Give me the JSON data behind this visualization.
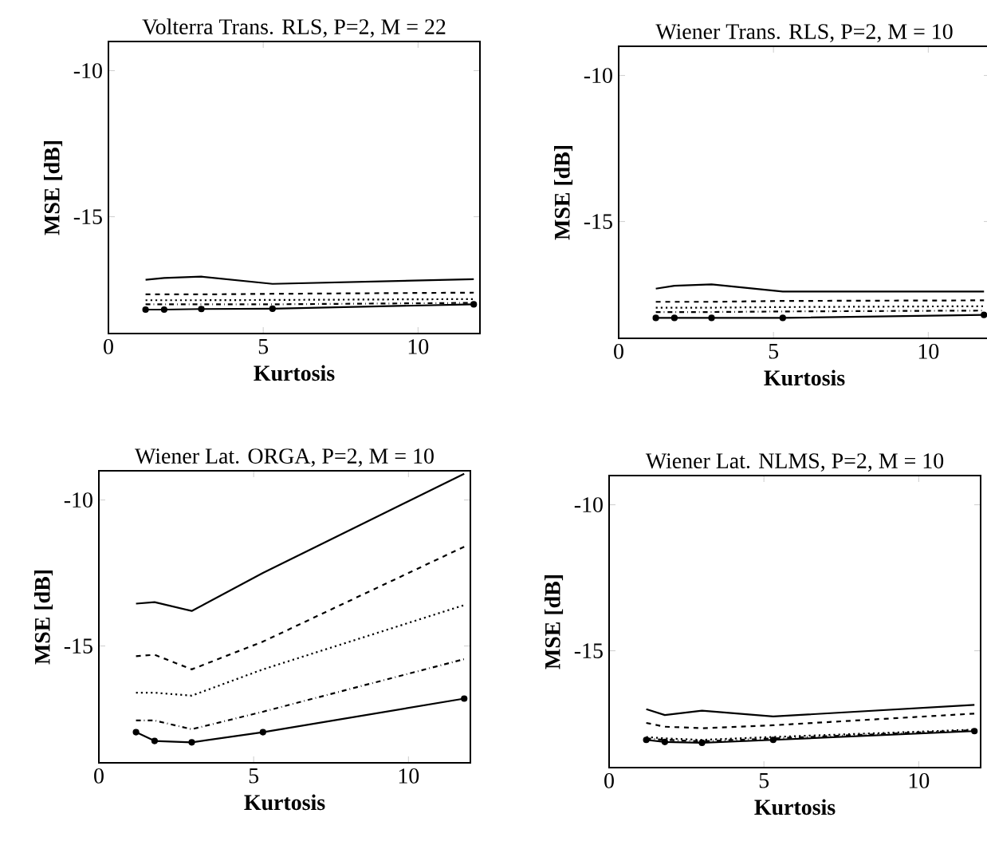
{
  "chart_data": [
    {
      "type": "line",
      "title": "Volterra Trans. RLS, P=2, M = 22",
      "xlabel": "Kurtosis",
      "ylabel": "MSE [dB]",
      "x": [
        1.2,
        1.8,
        3,
        5.3,
        11.8
      ],
      "xlim": [
        0,
        12
      ],
      "ylim": [
        -19,
        -9
      ],
      "xticks": [
        0,
        5,
        10
      ],
      "yticks": [
        -10,
        -15
      ],
      "series": [
        {
          "color": "#000000",
          "line_style": "solid",
          "values": [
            -17.16,
            -17.1,
            -17.05,
            -17.3,
            -17.14
          ]
        },
        {
          "color": "#000000",
          "line_style": "dashed",
          "values": [
            -17.66,
            -17.66,
            -17.66,
            -17.64,
            -17.6
          ]
        },
        {
          "color": "#000000",
          "line_style": "dotted",
          "values": [
            -17.86,
            -17.86,
            -17.86,
            -17.85,
            -17.82
          ]
        },
        {
          "color": "#000000",
          "line_style": "dashdot",
          "values": [
            -18.0,
            -18.0,
            -18.0,
            -18.0,
            -17.95
          ]
        },
        {
          "color": "#000000",
          "line_style": "solid",
          "marker": "circle",
          "values": [
            -18.18,
            -18.18,
            -18.16,
            -18.15,
            -18.0
          ]
        }
      ]
    },
    {
      "type": "line",
      "title": "Wiener Trans. RLS, P=2, M = 10",
      "xlabel": "Kurtosis",
      "ylabel": "MSE [dB]",
      "x": [
        1.2,
        1.8,
        3,
        5.3,
        11.8
      ],
      "xlim": [
        0,
        12
      ],
      "ylim": [
        -19,
        -9
      ],
      "xticks": [
        0,
        5,
        10
      ],
      "yticks": [
        -10,
        -15
      ],
      "series": [
        {
          "color": "#000000",
          "line_style": "solid",
          "values": [
            -17.3,
            -17.2,
            -17.15,
            -17.4,
            -17.4
          ]
        },
        {
          "color": "#000000",
          "line_style": "dashed",
          "values": [
            -17.75,
            -17.75,
            -17.75,
            -17.72,
            -17.7
          ]
        },
        {
          "color": "#000000",
          "line_style": "dotted",
          "values": [
            -17.95,
            -17.95,
            -17.95,
            -17.93,
            -17.9
          ]
        },
        {
          "color": "#000000",
          "line_style": "dashdot",
          "values": [
            -18.1,
            -18.1,
            -18.1,
            -18.08,
            -18.05
          ]
        },
        {
          "color": "#000000",
          "line_style": "solid",
          "marker": "circle",
          "values": [
            -18.3,
            -18.3,
            -18.3,
            -18.3,
            -18.2
          ]
        }
      ]
    },
    {
      "type": "line",
      "title": "Wiener Lat. ORGA, P=2, M = 10",
      "xlabel": "Kurtosis",
      "ylabel": "MSE [dB]",
      "x": [
        1.2,
        1.8,
        3,
        5.3,
        11.8
      ],
      "xlim": [
        0,
        12
      ],
      "ylim": [
        -19,
        -9
      ],
      "xticks": [
        0,
        5,
        10
      ],
      "yticks": [
        -10,
        -15
      ],
      "series": [
        {
          "color": "#000000",
          "line_style": "solid",
          "values": [
            -13.55,
            -13.5,
            -13.8,
            -12.5,
            -9.1
          ]
        },
        {
          "color": "#000000",
          "line_style": "dashed",
          "values": [
            -15.35,
            -15.3,
            -15.8,
            -14.85,
            -11.6
          ]
        },
        {
          "color": "#000000",
          "line_style": "dotted",
          "values": [
            -16.6,
            -16.6,
            -16.7,
            -15.8,
            -13.6
          ]
        },
        {
          "color": "#000000",
          "line_style": "dashdot",
          "values": [
            -17.55,
            -17.55,
            -17.85,
            -17.25,
            -15.45
          ]
        },
        {
          "color": "#000000",
          "line_style": "solid",
          "marker": "circle",
          "values": [
            -17.95,
            -18.25,
            -18.3,
            -17.95,
            -16.8
          ]
        }
      ]
    },
    {
      "type": "line",
      "title": "Wiener Lat. NLMS, P=2, M = 10",
      "xlabel": "Kurtosis",
      "ylabel": "MSE [dB]",
      "x": [
        1.2,
        1.8,
        3,
        5.3,
        11.8
      ],
      "xlim": [
        0,
        12
      ],
      "ylim": [
        -19,
        -9
      ],
      "xticks": [
        0,
        5,
        10
      ],
      "yticks": [
        -10,
        -15
      ],
      "series": [
        {
          "color": "#000000",
          "line_style": "solid",
          "values": [
            -17.0,
            -17.2,
            -17.05,
            -17.25,
            -16.85
          ]
        },
        {
          "color": "#000000",
          "line_style": "dashed",
          "values": [
            -17.47,
            -17.6,
            -17.65,
            -17.55,
            -17.15
          ]
        },
        {
          "color": "#000000",
          "line_style": "dotted",
          "values": [
            -17.95,
            -18.0,
            -18.05,
            -17.95,
            -17.7
          ]
        },
        {
          "color": "#000000",
          "line_style": "dashdot",
          "values": [
            -18.0,
            -18.05,
            -18.1,
            -18.0,
            -17.72
          ]
        },
        {
          "color": "#000000",
          "line_style": "solid",
          "marker": "circle",
          "values": [
            -18.05,
            -18.12,
            -18.15,
            -18.05,
            -17.75
          ]
        }
      ]
    }
  ]
}
